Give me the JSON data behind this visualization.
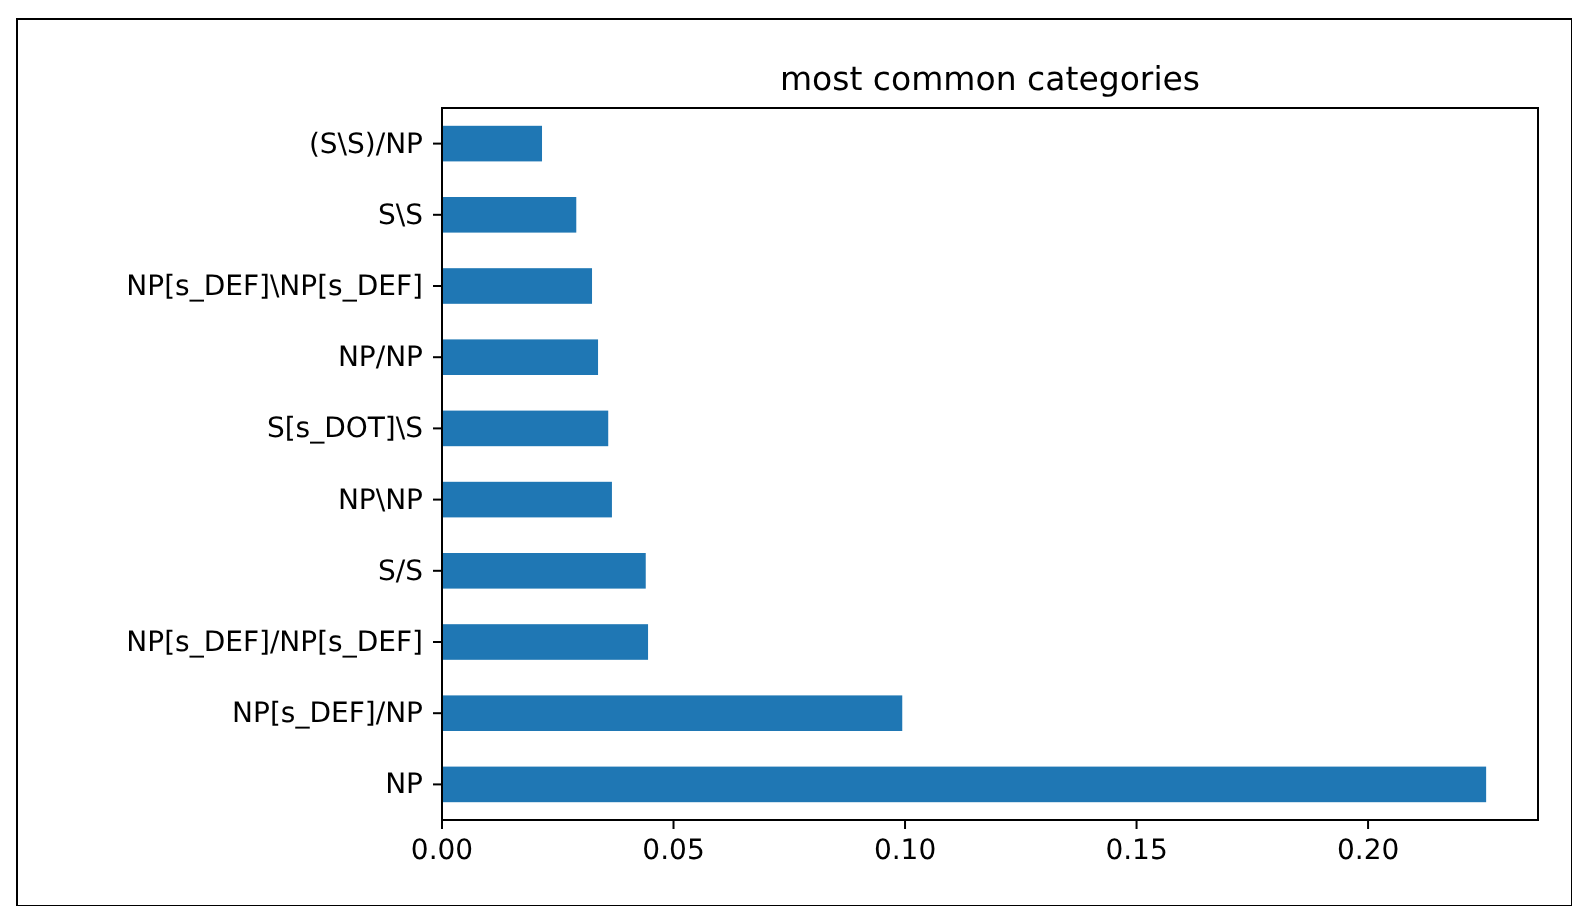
{
  "chart_data": {
    "type": "bar",
    "orientation": "horizontal",
    "title": "most common categories",
    "categories": [
      "(S\\S)/NP",
      "S\\S",
      "NP[s_DEF]\\NP[s_DEF]",
      "NP/NP",
      "S[s_DOT]\\S",
      "NP\\NP",
      "S/S",
      "NP[s_DEF]/NP[s_DEF]",
      "NP[s_DEF]/NP",
      "NP"
    ],
    "values": [
      0.0216,
      0.029,
      0.0324,
      0.0337,
      0.0359,
      0.0367,
      0.044,
      0.0445,
      0.0994,
      0.2255
    ],
    "color": "#1f77b4",
    "xlim": [
      0,
      0.2367
    ],
    "xticks": [
      {
        "value": 0,
        "label": "0.00"
      },
      {
        "value": 0.05,
        "label": "0.05"
      },
      {
        "value": 0.1,
        "label": "0.10"
      },
      {
        "value": 0.15,
        "label": "0.15"
      },
      {
        "value": 0.2,
        "label": "0.20"
      }
    ],
    "grid": false
  }
}
